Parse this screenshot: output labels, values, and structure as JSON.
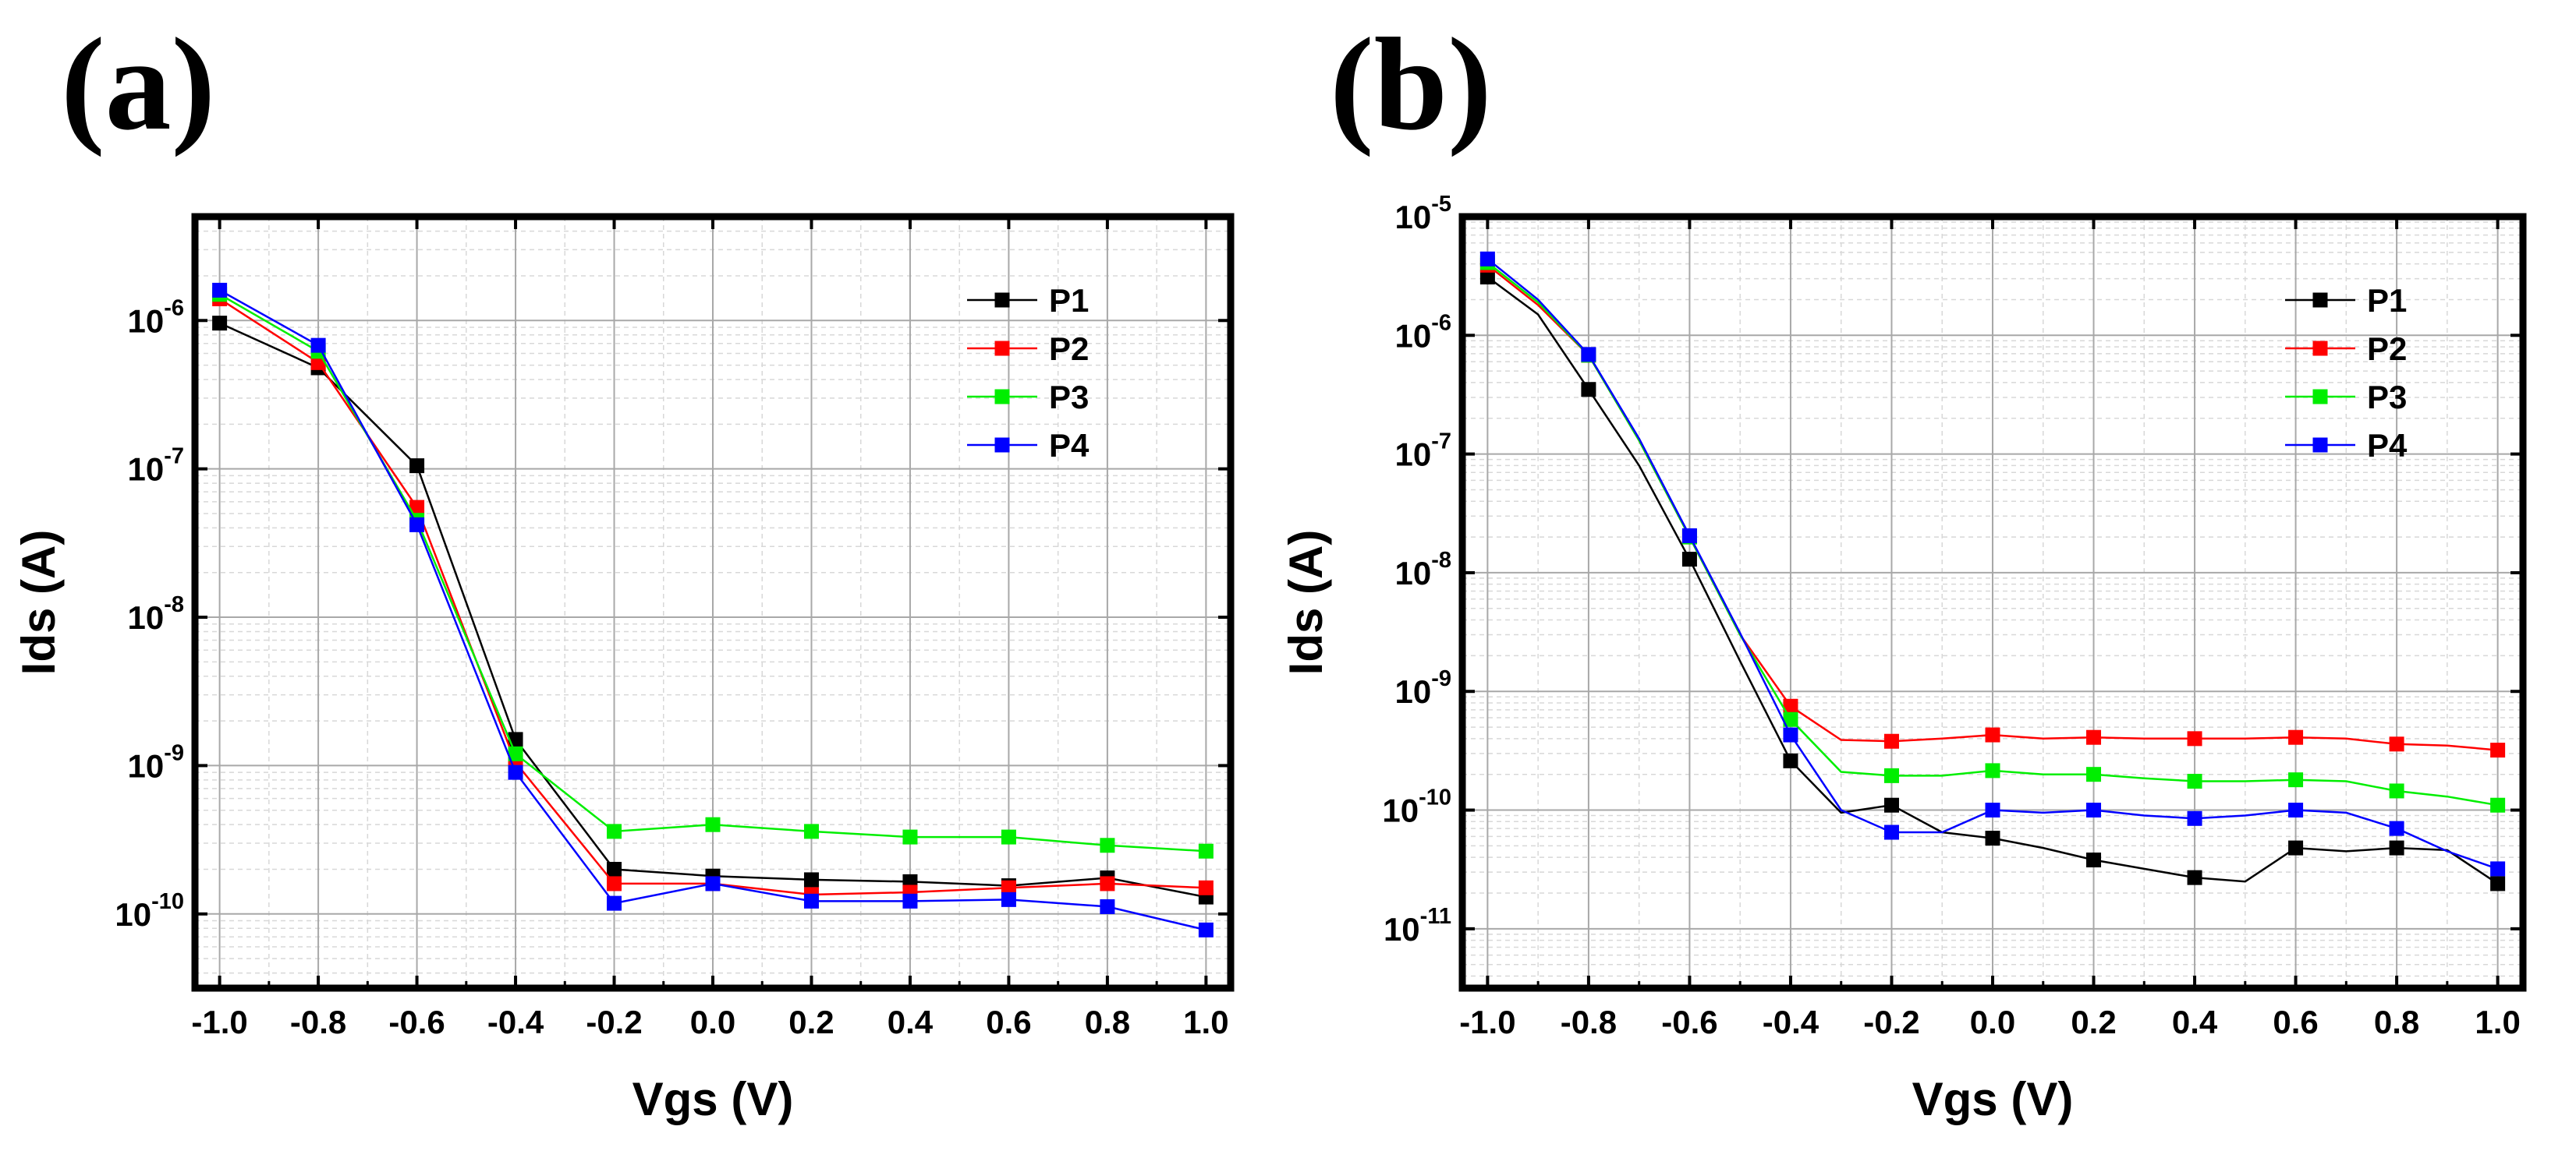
{
  "chart_data": [
    {
      "panel": "(a)",
      "type": "line",
      "x_scale": "linear",
      "y_scale": "log",
      "xlabel": "Vgs (V)",
      "ylabel": "Ids (A)",
      "xlim": [
        -1.05,
        1.05
      ],
      "ylim_log10": [
        -10.5,
        -5.3
      ],
      "xticks": [
        "-1.0",
        "-0.8",
        "-0.6",
        "-0.4",
        "-0.2",
        "0.0",
        "0.2",
        "0.4",
        "0.6",
        "0.8",
        "1.0"
      ],
      "yticks": [
        {
          "base": "10",
          "exp": "-10"
        },
        {
          "base": "10",
          "exp": "-9"
        },
        {
          "base": "10",
          "exp": "-8"
        },
        {
          "base": "10",
          "exp": "-7"
        },
        {
          "base": "10",
          "exp": "-6"
        }
      ],
      "grid": true,
      "legend_position": "top-right",
      "series": [
        {
          "name": "P1",
          "color": "#000000",
          "markers": true,
          "x": [
            -1.0,
            -0.8,
            -0.6,
            -0.4,
            -0.2,
            0.0,
            0.2,
            0.4,
            0.6,
            0.8,
            1.0
          ],
          "y": [
            9.6e-07,
            4.8e-07,
            1.05e-07,
            1.5e-09,
            2e-10,
            1.8e-10,
            1.7e-10,
            1.65e-10,
            1.55e-10,
            1.75e-10,
            1.3e-10
          ]
        },
        {
          "name": "P2",
          "color": "#ff0000",
          "markers": true,
          "x": [
            -1.0,
            -0.8,
            -0.6,
            -0.4,
            -0.2,
            0.0,
            0.2,
            0.4,
            0.6,
            0.8,
            1.0
          ],
          "y": [
            1.4e-06,
            5.2e-07,
            5.5e-08,
            1.05e-09,
            1.6e-10,
            1.6e-10,
            1.35e-10,
            1.4e-10,
            1.5e-10,
            1.6e-10,
            1.5e-10
          ]
        },
        {
          "name": "P3",
          "color": "#00ee00",
          "markers": true,
          "x": [
            -1.0,
            -0.8,
            -0.6,
            -0.4,
            -0.2,
            0.0,
            0.2,
            0.4,
            0.6,
            0.8,
            1.0
          ],
          "y": [
            1.5e-06,
            6.2e-07,
            4.5e-08,
            1.2e-09,
            3.6e-10,
            4e-10,
            3.6e-10,
            3.3e-10,
            3.3e-10,
            2.9e-10,
            2.65e-10
          ]
        },
        {
          "name": "P4",
          "color": "#0000ff",
          "markers": true,
          "x": [
            -1.0,
            -0.8,
            -0.6,
            -0.4,
            -0.2,
            0.0,
            0.2,
            0.4,
            0.6,
            0.8,
            1.0
          ],
          "y": [
            1.6e-06,
            6.8e-07,
            4.2e-08,
            9e-10,
            1.18e-10,
            1.6e-10,
            1.22e-10,
            1.22e-10,
            1.25e-10,
            1.12e-10,
            7.8e-11
          ]
        }
      ]
    },
    {
      "panel": "(b)",
      "type": "line",
      "x_scale": "linear",
      "y_scale": "log",
      "xlabel": "Vgs (V)",
      "ylabel": "Ids (A)",
      "xlim": [
        -1.05,
        1.05
      ],
      "ylim_log10": [
        -11.5,
        -5.0
      ],
      "xticks": [
        "-1.0",
        "-0.8",
        "-0.6",
        "-0.4",
        "-0.2",
        "0.0",
        "0.2",
        "0.4",
        "0.6",
        "0.8",
        "1.0"
      ],
      "yticks": [
        {
          "base": "10",
          "exp": "-11"
        },
        {
          "base": "10",
          "exp": "-10"
        },
        {
          "base": "10",
          "exp": "-9"
        },
        {
          "base": "10",
          "exp": "-8"
        },
        {
          "base": "10",
          "exp": "-7"
        },
        {
          "base": "10",
          "exp": "-6"
        },
        {
          "base": "10",
          "exp": "-5"
        }
      ],
      "grid": true,
      "legend_position": "top-right",
      "series": [
        {
          "name": "P1",
          "color": "#000000",
          "x": [
            -1.0,
            -0.9,
            -0.8,
            -0.7,
            -0.6,
            -0.5,
            -0.4,
            -0.3,
            -0.2,
            -0.1,
            0.0,
            0.1,
            0.2,
            0.3,
            0.4,
            0.5,
            0.6,
            0.7,
            0.8,
            0.9,
            1.0
          ],
          "y": [
            3.1e-06,
            1.5e-06,
            3.5e-07,
            8e-08,
            1.3e-08,
            1.8e-09,
            2.6e-10,
            9.5e-11,
            1.1e-10,
            6.5e-11,
            5.8e-11,
            4.8e-11,
            3.8e-11,
            3.2e-11,
            2.7e-11,
            2.5e-11,
            4.8e-11,
            4.5e-11,
            4.8e-11,
            4.6e-11,
            2.4e-11
          ],
          "marker_x": [
            -1.0,
            -0.8,
            -0.6,
            -0.4,
            -0.2,
            0.0,
            0.2,
            0.4,
            0.6,
            0.8,
            1.0
          ]
        },
        {
          "name": "P2",
          "color": "#ff0000",
          "x": [
            -1.0,
            -0.9,
            -0.8,
            -0.7,
            -0.6,
            -0.5,
            -0.4,
            -0.3,
            -0.2,
            -0.1,
            0.0,
            0.1,
            0.2,
            0.3,
            0.4,
            0.5,
            0.6,
            0.7,
            0.8,
            0.9,
            1.0
          ],
          "y": [
            3.9e-06,
            1.8e-06,
            6.8e-07,
            1.3e-07,
            2e-08,
            3e-09,
            7.5e-10,
            3.9e-10,
            3.8e-10,
            4e-10,
            4.3e-10,
            4e-10,
            4.1e-10,
            4e-10,
            4e-10,
            4e-10,
            4.1e-10,
            4e-10,
            3.6e-10,
            3.5e-10,
            3.2e-10
          ],
          "marker_x": [
            -1.0,
            -0.8,
            -0.6,
            -0.4,
            -0.2,
            0.0,
            0.2,
            0.4,
            0.6,
            0.8,
            1.0
          ]
        },
        {
          "name": "P3",
          "color": "#00ee00",
          "x": [
            -1.0,
            -0.9,
            -0.8,
            -0.7,
            -0.6,
            -0.5,
            -0.4,
            -0.3,
            -0.2,
            -0.1,
            0.0,
            0.1,
            0.2,
            0.3,
            0.4,
            0.5,
            0.6,
            0.7,
            0.8,
            0.9,
            1.0
          ],
          "y": [
            4.1e-06,
            1.9e-06,
            6.8e-07,
            1.3e-07,
            2e-08,
            3e-09,
            5.8e-10,
            2.1e-10,
            1.95e-10,
            1.95e-10,
            2.15e-10,
            2e-10,
            2e-10,
            1.85e-10,
            1.75e-10,
            1.75e-10,
            1.8e-10,
            1.75e-10,
            1.45e-10,
            1.3e-10,
            1.1e-10
          ],
          "marker_x": [
            -1.0,
            -0.8,
            -0.6,
            -0.4,
            -0.2,
            0.0,
            0.2,
            0.4,
            0.6,
            0.8,
            1.0
          ]
        },
        {
          "name": "P4",
          "color": "#0000ff",
          "x": [
            -1.0,
            -0.9,
            -0.8,
            -0.7,
            -0.6,
            -0.5,
            -0.4,
            -0.3,
            -0.2,
            -0.1,
            0.0,
            0.1,
            0.2,
            0.3,
            0.4,
            0.5,
            0.6,
            0.7,
            0.8,
            0.9,
            1.0
          ],
          "y": [
            4.4e-06,
            2e-06,
            6.9e-07,
            1.35e-07,
            2.05e-08,
            3.1e-09,
            4.3e-10,
            1e-10,
            6.5e-11,
            6.5e-11,
            1e-10,
            9.5e-11,
            1e-10,
            9e-11,
            8.5e-11,
            9e-11,
            1e-10,
            9.5e-11,
            7e-11,
            4.5e-11,
            3.2e-11
          ],
          "marker_x": [
            -1.0,
            -0.8,
            -0.6,
            -0.4,
            -0.2,
            0.0,
            0.2,
            0.4,
            0.6,
            0.8,
            1.0
          ]
        }
      ]
    }
  ]
}
